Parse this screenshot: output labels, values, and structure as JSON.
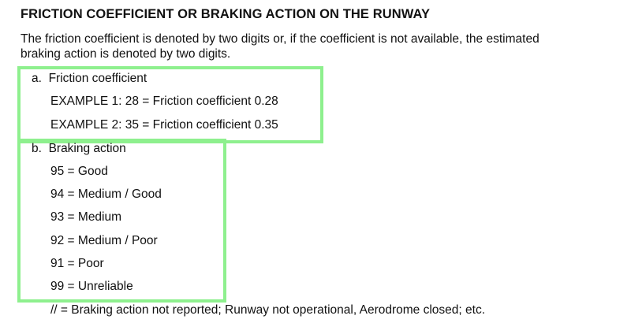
{
  "heading": "FRICTION COEFFICIENT OR BRAKING ACTION ON THE RUNWAY",
  "intro": {
    "line1": "The friction coefficient is denoted by two digits or, if the coefficient is not available, the estimated",
    "line2": "braking action is denoted by two digits."
  },
  "section_a": {
    "marker": "a.",
    "title": "Friction coefficient",
    "examples": [
      "EXAMPLE 1: 28 = Friction coefficient 0.28",
      "EXAMPLE 2: 35 = Friction coefficient 0.35"
    ]
  },
  "section_b": {
    "marker": "b.",
    "title": "Braking action",
    "items": [
      "95 = Good",
      "94 = Medium / Good",
      "93 = Medium",
      "92 = Medium / Poor",
      "91 = Poor",
      "99 = Unreliable"
    ]
  },
  "footnote": "// = Braking action not reported; Runway not operational, Aerodrome closed; etc.",
  "highlight_color": "#8ef08e"
}
